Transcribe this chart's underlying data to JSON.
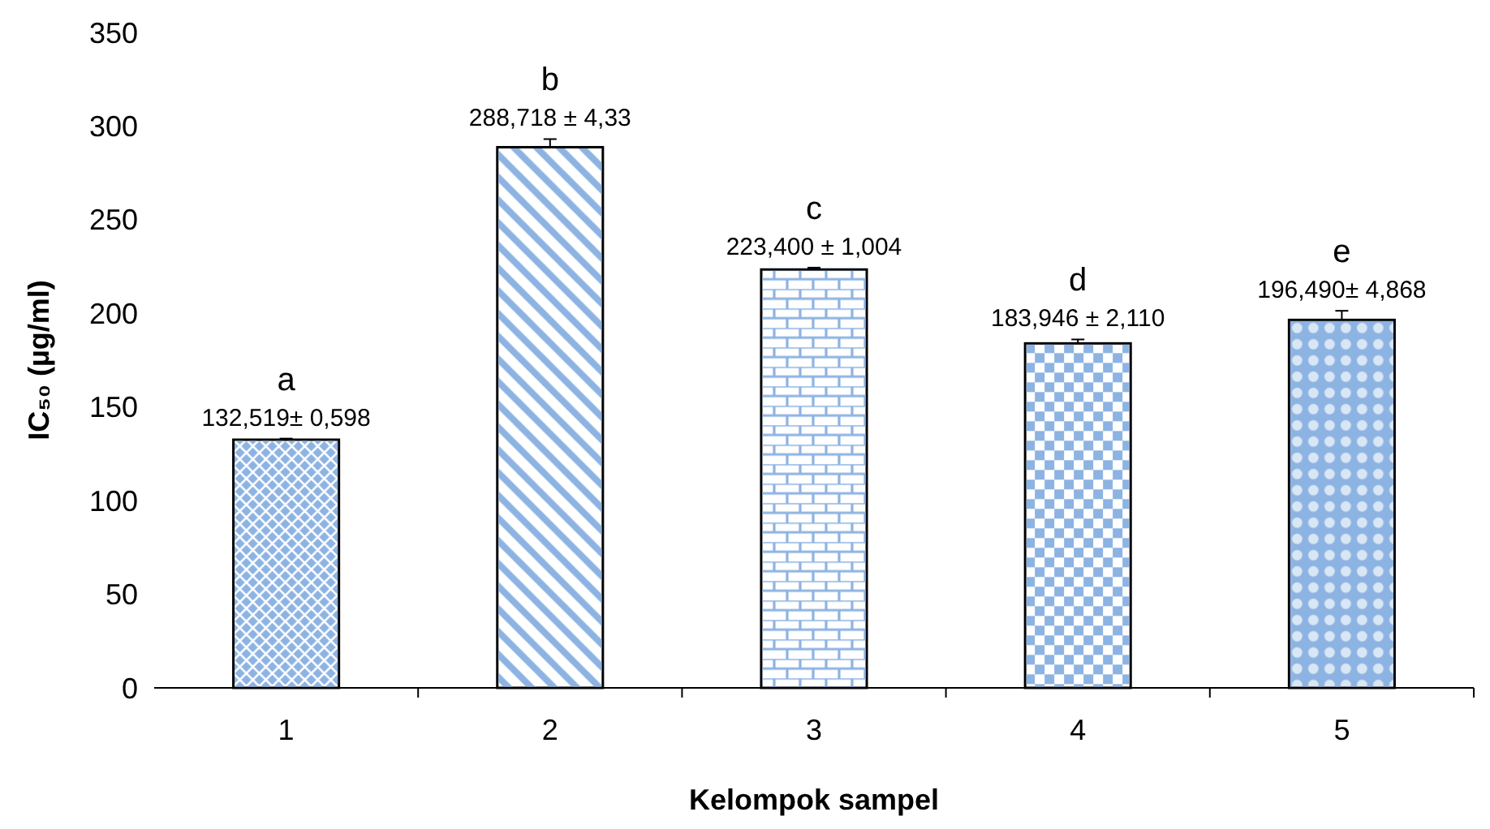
{
  "chart_data": {
    "type": "bar",
    "xlabel": "Kelompok sampel",
    "ylabel": "IC₅₀ (µg/ml)",
    "categories": [
      "1",
      "2",
      "3",
      "4",
      "5"
    ],
    "series": [
      {
        "color": "#8db3e2",
        "values": [
          132.519,
          288.718,
          223.4,
          183.946,
          196.49
        ],
        "errors": [
          0.598,
          4.33,
          1.004,
          2.11,
          4.868
        ],
        "value_labels": [
          "132,519± 0,598",
          "288,718 ± 4,33",
          "223,400 ± 1,004",
          "183,946 ± 2,110",
          "196,490± 4,868"
        ]
      }
    ],
    "ylim": [
      0,
      350
    ],
    "yticks": [
      0,
      50,
      100,
      150,
      200,
      250,
      300,
      350
    ],
    "grid": false,
    "annotations": [
      "a",
      "b",
      "c",
      "d",
      "e"
    ]
  }
}
